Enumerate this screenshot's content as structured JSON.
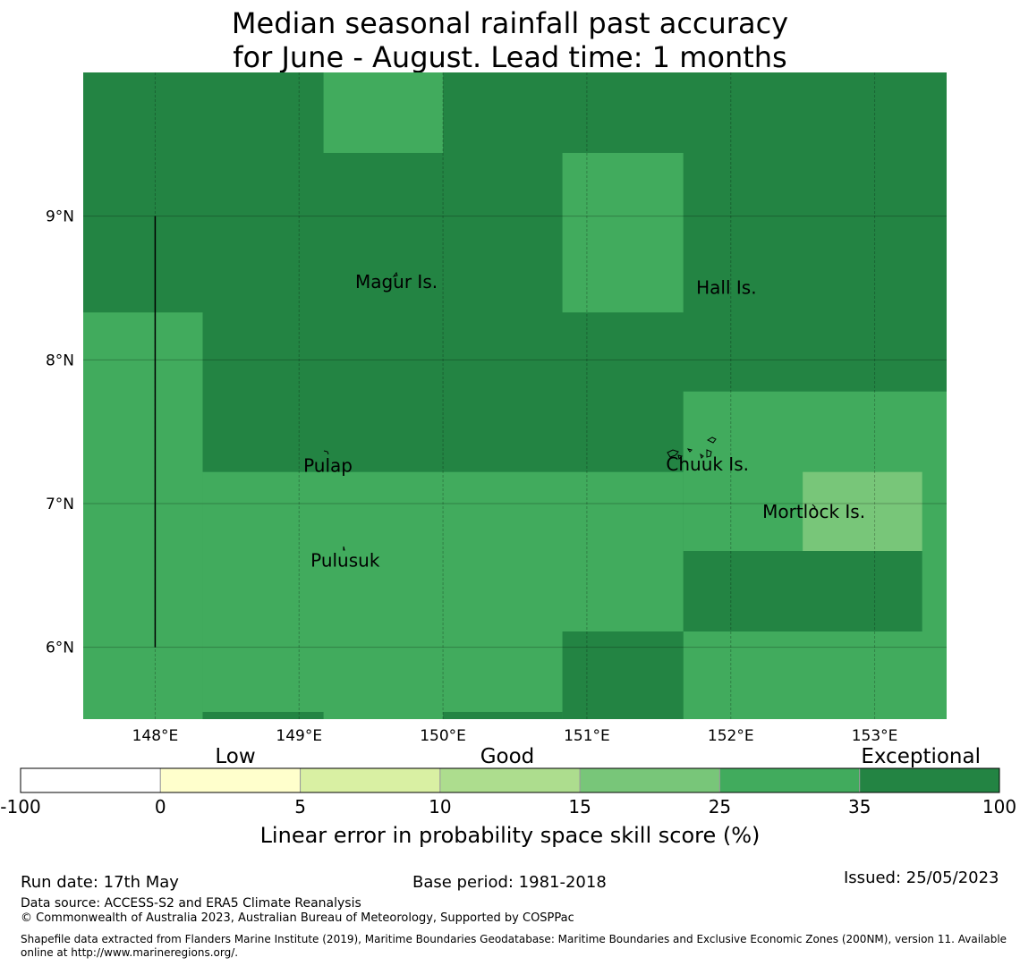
{
  "title_line1": "Median seasonal rainfall past accuracy",
  "title_line2": "for June - August. Lead time: 1 months",
  "map": {
    "lon_range": [
      147.5,
      153.5
    ],
    "lat_range": [
      5.5,
      10.0
    ],
    "lon_ticks": [
      {
        "value": 148,
        "label": "148°E"
      },
      {
        "value": 149,
        "label": "149°E"
      },
      {
        "value": 150,
        "label": "150°E"
      },
      {
        "value": 151,
        "label": "151°E"
      },
      {
        "value": 152,
        "label": "152°E"
      },
      {
        "value": 153,
        "label": "153°E"
      }
    ],
    "lat_ticks": [
      {
        "value": 9,
        "label": "9°N"
      },
      {
        "value": 8,
        "label": "8°N"
      },
      {
        "value": 7,
        "label": "7°N"
      },
      {
        "value": 6,
        "label": "6°N"
      }
    ],
    "background_category": "exceptional",
    "cells": [
      {
        "lon": [
          149.17,
          150.0
        ],
        "lat": [
          9.44,
          10.0
        ],
        "category": "very-good"
      },
      {
        "lon": [
          150.83,
          151.67
        ],
        "lat": [
          8.33,
          9.44
        ],
        "category": "very-good"
      },
      {
        "lon": [
          147.5,
          148.33
        ],
        "lat": [
          5.5,
          8.33
        ],
        "category": "very-good"
      },
      {
        "lon": [
          148.33,
          151.67
        ],
        "lat": [
          5.5,
          7.22
        ],
        "category": "very-good"
      },
      {
        "lon": [
          151.67,
          153.5
        ],
        "lat": [
          5.5,
          7.78
        ],
        "category": "very-good"
      },
      {
        "lon": [
          152.5,
          153.33
        ],
        "lat": [
          6.67,
          7.22
        ],
        "category": "good"
      },
      {
        "lon": [
          151.67,
          153.33
        ],
        "lat": [
          6.11,
          6.67
        ],
        "category": "exceptional"
      },
      {
        "lon": [
          150.83,
          151.67
        ],
        "lat": [
          5.5,
          6.11
        ],
        "category": "exceptional"
      },
      {
        "lon": [
          148.33,
          149.17
        ],
        "lat": [
          5.5,
          5.55
        ],
        "category": "exceptional"
      },
      {
        "lon": [
          150.0,
          150.83
        ],
        "lat": [
          5.5,
          5.55
        ],
        "category": "exceptional"
      }
    ],
    "place_labels": [
      {
        "name": "Magur Is.",
        "lon": 149.39,
        "lat": 8.5
      },
      {
        "name": "Hall Is.",
        "lon": 151.76,
        "lat": 8.46
      },
      {
        "name": "Pulap",
        "lon": 149.03,
        "lat": 7.22
      },
      {
        "name": "Chuuk Is.",
        "lon": 151.55,
        "lat": 7.23
      },
      {
        "name": "Mortlock Is.",
        "lon": 152.22,
        "lat": 6.9
      },
      {
        "name": "Pulusuk",
        "lon": 149.08,
        "lat": 6.56
      }
    ],
    "boundary_line": {
      "lon": 148.0,
      "lat": [
        6.0,
        9.0
      ]
    }
  },
  "colorbar": {
    "category_labels": [
      "Low",
      "Good",
      "Exceptional"
    ],
    "tick_labels": [
      "-100",
      "0",
      "5",
      "10",
      "15",
      "25",
      "35",
      "100"
    ],
    "colors": [
      "#ffffff",
      "#ffffcc",
      "#d9f0a3",
      "#addd8e",
      "#78c679",
      "#41ab5d",
      "#238443"
    ],
    "label": "Linear error in probability space skill score (%)"
  },
  "category_colors": {
    "good": "#78c679",
    "very-good": "#41ab5d",
    "exceptional": "#238443"
  },
  "footer": {
    "run_date": "Run date: 17th May",
    "base_period": "Base period: 1981-2018",
    "issued": "Issued: 25/05/2023",
    "data_source": "Data source: ACCESS-S2 and ERA5 Climate Reanalysis",
    "copyright": "© Commonwealth of Australia 2023, Australian Bureau of Meteorology, Supported by COSPPac",
    "shapefile_line1": "Shapefile data extracted from Flanders Marine Institute (2019), Maritime Boundaries Geodatabase: Maritime Boundaries and Exclusive Economic Zones (200NM), version 11. Available",
    "shapefile_line2": "online at http://www.marineregions.org/."
  }
}
